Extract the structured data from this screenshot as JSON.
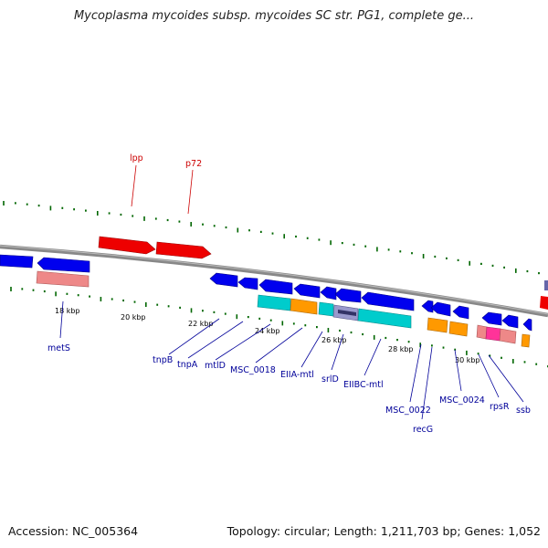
{
  "title": "Mycoplasma mycoides subsp. mycoides SC str. PG1, complete ge...",
  "footer": {
    "accession": "Accession: NC_005364",
    "topology": "Topology: circular; Length: 1,211,703 bp; Genes: 1,052"
  },
  "colors": {
    "backbone": "#808080",
    "forward_gene": "#ff0000",
    "reverse_gene": "#0000ff",
    "cds": "#00cccc",
    "orange": "#ff9900",
    "pink": "#ee8888",
    "magenta": "#ff3399",
    "navy": "#333399",
    "tick": "#006600",
    "label_red": "#cc0000",
    "label_blue": "#000099"
  },
  "kbp_labels": [
    "18 kbp",
    "20 kbp",
    "22 kbp",
    "24 kbp",
    "26 kbp",
    "28 kbp",
    "30 kbp"
  ],
  "upper_gene_labels": [
    "lpp",
    "p72"
  ],
  "lower_gene_labels": [
    "metS",
    "tnpB",
    "tnpA",
    "mtlD",
    "MSC_0018",
    "EIIA-mtl",
    "srlD",
    "EIIBC-mtl",
    "MSC_0022",
    "recG",
    "MSC_0024",
    "rpsR",
    "ssb"
  ]
}
